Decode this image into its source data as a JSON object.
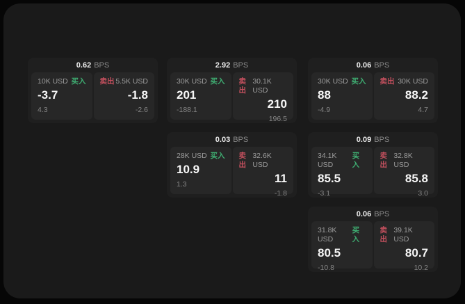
{
  "labels": {
    "buy": "买入",
    "sell": "卖出",
    "bps_unit": "BPS"
  },
  "colors": {
    "background": "#060606",
    "window": "#1a1a1a",
    "card": "#1f1f1f",
    "panel": "#272727",
    "buy_green": "#3fae72",
    "sell_red": "#c4505e",
    "value_white": "#f6f6f6",
    "muted_gray": "#9c9c9c"
  },
  "cards": [
    {
      "bps": "0.62",
      "buy": {
        "amount": "10K USD",
        "price": "-3.7",
        "change": "4.3"
      },
      "sell": {
        "amount": "5.5K USD",
        "price": "-1.8",
        "change": "-2.6"
      }
    },
    {
      "bps": "2.92",
      "buy": {
        "amount": "30K USD",
        "price": "201",
        "change": "-188.1"
      },
      "sell": {
        "amount": "30.1K USD",
        "price": "210",
        "change": "196.5"
      }
    },
    {
      "bps": "0.06",
      "buy": {
        "amount": "30K USD",
        "price": "88",
        "change": "-4.9"
      },
      "sell": {
        "amount": "30K USD",
        "price": "88.2",
        "change": "4.7"
      }
    },
    {
      "bps": "0.03",
      "buy": {
        "amount": "28K USD",
        "price": "10.9",
        "change": "1.3"
      },
      "sell": {
        "amount": "32.6K USD",
        "price": "11",
        "change": "-1.8"
      }
    },
    {
      "bps": "0.09",
      "buy": {
        "amount": "34.1K USD",
        "price": "85.5",
        "change": "-3.1"
      },
      "sell": {
        "amount": "32.8K USD",
        "price": "85.8",
        "change": "3.0"
      }
    },
    {
      "bps": "0.06",
      "buy": {
        "amount": "31.8K USD",
        "price": "80.5",
        "change": "-10.8"
      },
      "sell": {
        "amount": "39.1K USD",
        "price": "80.7",
        "change": "10.2"
      }
    }
  ]
}
